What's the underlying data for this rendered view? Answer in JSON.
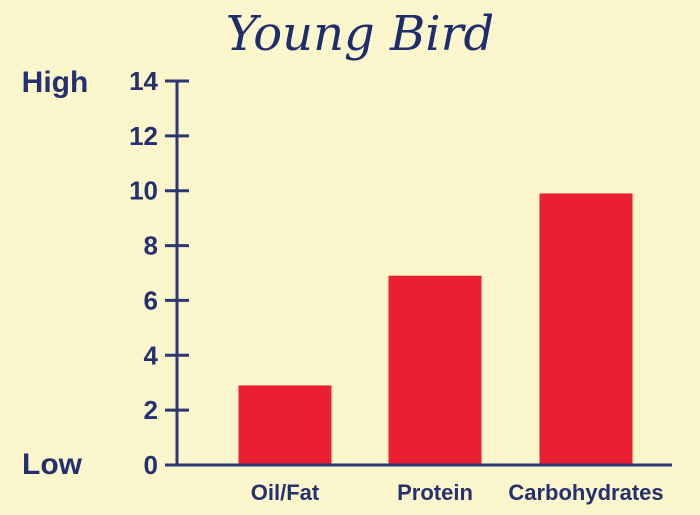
{
  "colors": {
    "background": "#fbf6cb",
    "axis": "#2a3773",
    "bar": "#ea1f34",
    "text": "#24306f"
  },
  "chart_data": {
    "type": "bar",
    "title": "Young Bird",
    "categories": [
      "Oil/Fat",
      "Protein",
      "Carbohydrates"
    ],
    "values": [
      2.9,
      6.9,
      9.9
    ],
    "ylim": [
      0,
      14
    ],
    "yticks": [
      0,
      2,
      4,
      6,
      8,
      10,
      12,
      14
    ],
    "y_high_label": "High",
    "y_low_label": "Low",
    "xlabel": "",
    "ylabel": "",
    "grid": false,
    "legend": "none"
  }
}
